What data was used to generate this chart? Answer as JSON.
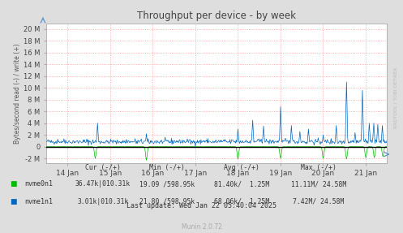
{
  "title": "Throughput per device - by week",
  "ylabel": "Bytes/second read (-) / write (+)",
  "xlabel_ticks": [
    "14 Jan",
    "15 Jan",
    "16 Jan",
    "17 Jan",
    "18 Jan",
    "19 Jan",
    "20 Jan",
    "21 Jan"
  ],
  "yticks": [
    -2000000,
    0,
    2000000,
    4000000,
    6000000,
    8000000,
    10000000,
    12000000,
    14000000,
    16000000,
    18000000,
    20000000
  ],
  "ytick_labels": [
    "-2 M",
    "0",
    "2 M",
    "4 M",
    "6 M",
    "8 M",
    "10 M",
    "12 M",
    "14 M",
    "16 M",
    "18 M",
    "20 M"
  ],
  "ylim": [
    -2800000,
    21000000
  ],
  "xlim": [
    0,
    8
  ],
  "bg_color": "#DEDEDE",
  "plot_bg_color": "#FFFFFF",
  "grid_color": "#FF9999",
  "nvme0n1_color": "#00BB00",
  "nvme1n1_color": "#0066BB",
  "legend_items": [
    {
      "label": "nvme0n1",
      "color": "#00BB00"
    },
    {
      "label": "nvme1n1",
      "color": "#0066BB"
    }
  ],
  "table_headers": [
    "Cur (-/+)",
    "Min (-/+)",
    "Avg (-/+)",
    "Max (-/+)"
  ],
  "table_rows": [
    [
      "36.47k|010.31k",
      "19.09 /598.95k",
      "81.40k/  1.25M",
      "11.11M/ 24.58M"
    ],
    [
      "3.01k|010.31k",
      "21.80 /598.95k",
      "68.06k/  1.25M",
      "7.42M/ 24.58M"
    ]
  ],
  "last_update": "Last update: Wed Jan 22 05:40:04 2025",
  "munin_version": "Munin 2.0.72",
  "watermark": "RRDTOOL / TOBI OETIKER",
  "n_points": 600,
  "x_end": 8,
  "spike_positions_nvme1n1": [
    1.2,
    2.35,
    4.5,
    4.85,
    5.1,
    5.5,
    5.75,
    5.95,
    6.15,
    6.5,
    6.8,
    7.05,
    7.25,
    7.42,
    7.58,
    7.68,
    7.78,
    7.88
  ],
  "spike_heights_nvme1n1": [
    4000000,
    2200000,
    3000000,
    4500000,
    3500000,
    6800000,
    3600000,
    2600000,
    3000000,
    2000000,
    3600000,
    11000000,
    2400000,
    9600000,
    4000000,
    4000000,
    3800000,
    3600000
  ],
  "dip_positions_nvme0n1": [
    1.15,
    2.35,
    4.5,
    5.5,
    6.5,
    7.05,
    7.5,
    7.7,
    7.9
  ],
  "dip_heights_nvme0n1": [
    -2000000,
    -2300000,
    -2100000,
    -2000000,
    -2000000,
    -2100000,
    -1900000,
    -1900000,
    -1700000
  ]
}
